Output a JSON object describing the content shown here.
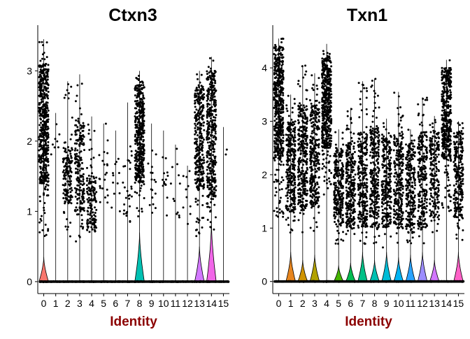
{
  "chart_data": [
    {
      "type": "violin",
      "title": "Ctxn3",
      "xlabel": "Identity",
      "ylabel": "",
      "categories": [
        "0",
        "1",
        "2",
        "3",
        "4",
        "5",
        "6",
        "7",
        "8",
        "9",
        "10",
        "11",
        "12",
        "13",
        "14",
        "15"
      ],
      "ylim": [
        -0.15,
        3.65
      ],
      "yticks": [
        0,
        1,
        2,
        3
      ],
      "jitter": true,
      "legend": "none",
      "violins": [
        {
          "cluster": "0",
          "nonzero_min": 0.6,
          "nonzero_max": 3.45,
          "bulk_low": 1.4,
          "bulk_high": 3.1,
          "zero_peak_height": 0.35,
          "n_points": 520
        },
        {
          "cluster": "1",
          "nonzero_min": 1.7,
          "nonzero_max": 2.4,
          "bulk_low": 1.8,
          "bulk_high": 2.3,
          "zero_peak_height": 0.0,
          "n_points": 8
        },
        {
          "cluster": "2",
          "nonzero_min": 0.55,
          "nonzero_max": 2.85,
          "bulk_low": 1.1,
          "bulk_high": 1.9,
          "zero_peak_height": 0.0,
          "n_points": 160
        },
        {
          "cluster": "3",
          "nonzero_min": 0.55,
          "nonzero_max": 2.95,
          "bulk_low": 1.0,
          "bulk_high": 2.3,
          "zero_peak_height": 0.0,
          "n_points": 200
        },
        {
          "cluster": "4",
          "nonzero_min": 0.6,
          "nonzero_max": 2.35,
          "bulk_low": 0.7,
          "bulk_high": 1.5,
          "zero_peak_height": 0.0,
          "n_points": 150
        },
        {
          "cluster": "5",
          "nonzero_min": 0.7,
          "nonzero_max": 2.25,
          "bulk_low": 1.0,
          "bulk_high": 1.9,
          "zero_peak_height": 0.0,
          "n_points": 22
        },
        {
          "cluster": "6",
          "nonzero_min": 0.8,
          "nonzero_max": 2.15,
          "bulk_low": 1.0,
          "bulk_high": 1.8,
          "zero_peak_height": 0.0,
          "n_points": 12
        },
        {
          "cluster": "7",
          "nonzero_min": 0.7,
          "nonzero_max": 2.55,
          "bulk_low": 0.8,
          "bulk_high": 1.9,
          "zero_peak_height": 0.0,
          "n_points": 28
        },
        {
          "cluster": "8",
          "nonzero_min": 0.9,
          "nonzero_max": 3.0,
          "bulk_low": 1.4,
          "bulk_high": 2.8,
          "zero_peak_height": 0.7,
          "n_points": 420
        },
        {
          "cluster": "9",
          "nonzero_min": 0.7,
          "nonzero_max": 2.25,
          "bulk_low": 1.0,
          "bulk_high": 1.9,
          "zero_peak_height": 0.0,
          "n_points": 18
        },
        {
          "cluster": "10",
          "nonzero_min": 0.6,
          "nonzero_max": 2.15,
          "bulk_low": 0.9,
          "bulk_high": 1.8,
          "zero_peak_height": 0.0,
          "n_points": 14
        },
        {
          "cluster": "11",
          "nonzero_min": 0.7,
          "nonzero_max": 1.95,
          "bulk_low": 0.9,
          "bulk_high": 1.7,
          "zero_peak_height": 0.0,
          "n_points": 12
        },
        {
          "cluster": "12",
          "nonzero_min": 0.7,
          "nonzero_max": 1.65,
          "bulk_low": 0.9,
          "bulk_high": 1.6,
          "zero_peak_height": 0.0,
          "n_points": 10
        },
        {
          "cluster": "13",
          "nonzero_min": 0.6,
          "nonzero_max": 3.0,
          "bulk_low": 1.3,
          "bulk_high": 2.8,
          "zero_peak_height": 0.5,
          "n_points": 320
        },
        {
          "cluster": "14",
          "nonzero_min": 0.7,
          "nonzero_max": 3.2,
          "bulk_low": 1.2,
          "bulk_high": 3.0,
          "zero_peak_height": 0.85,
          "n_points": 380
        },
        {
          "cluster": "15",
          "nonzero_min": 1.55,
          "nonzero_max": 2.2,
          "bulk_low": 1.6,
          "bulk_high": 2.1,
          "zero_peak_height": 0.0,
          "n_points": 2
        }
      ]
    },
    {
      "type": "violin",
      "title": "Txn1",
      "xlabel": "Identity",
      "ylabel": "",
      "categories": [
        "0",
        "1",
        "2",
        "3",
        "4",
        "5",
        "6",
        "7",
        "8",
        "9",
        "10",
        "11",
        "12",
        "13",
        "14",
        "15"
      ],
      "ylim": [
        -0.2,
        4.8
      ],
      "yticks": [
        0,
        1,
        2,
        3,
        4
      ],
      "jitter": true,
      "legend": "none",
      "violins": [
        {
          "cluster": "0",
          "nonzero_min": 1.2,
          "nonzero_max": 4.55,
          "bulk_low": 2.3,
          "bulk_high": 4.4,
          "zero_peak_height": 0.0,
          "n_points": 520
        },
        {
          "cluster": "1",
          "nonzero_min": 0.9,
          "nonzero_max": 3.5,
          "bulk_low": 1.3,
          "bulk_high": 3.0,
          "zero_peak_height": 0.55,
          "n_points": 300
        },
        {
          "cluster": "2",
          "nonzero_min": 0.9,
          "nonzero_max": 4.05,
          "bulk_low": 1.3,
          "bulk_high": 3.3,
          "zero_peak_height": 0.4,
          "n_points": 320
        },
        {
          "cluster": "3",
          "nonzero_min": 0.9,
          "nonzero_max": 3.9,
          "bulk_low": 1.4,
          "bulk_high": 3.3,
          "zero_peak_height": 0.5,
          "n_points": 300
        },
        {
          "cluster": "4",
          "nonzero_min": 1.6,
          "nonzero_max": 4.45,
          "bulk_low": 2.5,
          "bulk_high": 4.2,
          "zero_peak_height": 0.0,
          "n_points": 480
        },
        {
          "cluster": "5",
          "nonzero_min": 0.7,
          "nonzero_max": 2.85,
          "bulk_low": 1.0,
          "bulk_high": 2.5,
          "zero_peak_height": 0.3,
          "n_points": 260
        },
        {
          "cluster": "6",
          "nonzero_min": 0.7,
          "nonzero_max": 3.25,
          "bulk_low": 1.0,
          "bulk_high": 2.6,
          "zero_peak_height": 0.35,
          "n_points": 280
        },
        {
          "cluster": "7",
          "nonzero_min": 0.7,
          "nonzero_max": 3.75,
          "bulk_low": 1.0,
          "bulk_high": 2.8,
          "zero_peak_height": 0.55,
          "n_points": 280
        },
        {
          "cluster": "8",
          "nonzero_min": 0.7,
          "nonzero_max": 3.8,
          "bulk_low": 1.0,
          "bulk_high": 2.9,
          "zero_peak_height": 0.4,
          "n_points": 280
        },
        {
          "cluster": "9",
          "nonzero_min": 0.6,
          "nonzero_max": 3.05,
          "bulk_low": 1.0,
          "bulk_high": 2.7,
          "zero_peak_height": 0.55,
          "n_points": 260
        },
        {
          "cluster": "10",
          "nonzero_min": 0.6,
          "nonzero_max": 3.55,
          "bulk_low": 1.0,
          "bulk_high": 2.8,
          "zero_peak_height": 0.45,
          "n_points": 260
        },
        {
          "cluster": "11",
          "nonzero_min": 0.7,
          "nonzero_max": 2.85,
          "bulk_low": 1.0,
          "bulk_high": 2.6,
          "zero_peak_height": 0.5,
          "n_points": 240
        },
        {
          "cluster": "12",
          "nonzero_min": 0.7,
          "nonzero_max": 3.45,
          "bulk_low": 1.0,
          "bulk_high": 2.8,
          "zero_peak_height": 0.55,
          "n_points": 240
        },
        {
          "cluster": "13",
          "nonzero_min": 0.9,
          "nonzero_max": 3.1,
          "bulk_low": 1.2,
          "bulk_high": 2.8,
          "zero_peak_height": 0.4,
          "n_points": 200
        },
        {
          "cluster": "14",
          "nonzero_min": 1.3,
          "nonzero_max": 4.15,
          "bulk_low": 2.3,
          "bulk_high": 4.0,
          "zero_peak_height": 0.0,
          "n_points": 420
        },
        {
          "cluster": "15",
          "nonzero_min": 0.7,
          "nonzero_max": 3.0,
          "bulk_low": 1.2,
          "bulk_high": 2.8,
          "zero_peak_height": 0.55,
          "n_points": 260
        }
      ]
    }
  ],
  "colors": {
    "palette": [
      "#F8766D",
      "#E7851E",
      "#D09400",
      "#B2A100",
      "#89AC00",
      "#45B500",
      "#00BC51",
      "#00C087",
      "#00C0B2",
      "#00BCD6",
      "#00B3F2",
      "#29A3FF",
      "#9C8DFF",
      "#D277FF",
      "#F166E8",
      "#FF61C7"
    ],
    "points": "#000000",
    "title": "#000000",
    "xlabel": "#8B0000"
  }
}
